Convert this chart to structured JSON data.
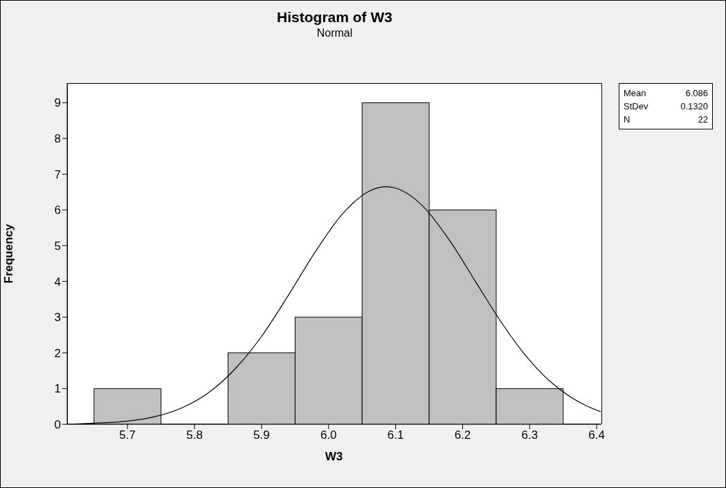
{
  "chart_data": {
    "type": "histogram",
    "title": "Histogram of W3",
    "subtitle": "Normal",
    "xlabel": "W3",
    "ylabel": "Frequency",
    "bins": [
      5.65,
      5.75,
      5.85,
      5.95,
      6.05,
      6.15,
      6.25,
      6.35
    ],
    "values": [
      1,
      0,
      2,
      3,
      9,
      6,
      1
    ],
    "color": "#c0c0c0",
    "series": [
      {
        "type": "line",
        "color": "#000000",
        "x": [
          5.62,
          5.66,
          5.7,
          5.74,
          5.78,
          5.82,
          5.86,
          5.9,
          5.94,
          5.98,
          6.02,
          6.06,
          6.086,
          6.1,
          6.14,
          6.18,
          6.22,
          6.26,
          6.3,
          6.34,
          6.38,
          6.406
        ],
        "values": [
          0.01,
          0.04,
          0.09,
          0.21,
          0.45,
          0.87,
          1.54,
          2.46,
          3.61,
          4.82,
          5.87,
          6.52,
          6.65,
          6.61,
          6.12,
          5.16,
          3.97,
          2.79,
          1.79,
          1.05,
          0.56,
          0.35
        ]
      }
    ],
    "xlim": [
      5.61,
      6.406
    ],
    "xticks": [
      5.7,
      5.8,
      5.9,
      {
        "value": 6,
        "label": "6.0"
      },
      6.1,
      6.2,
      6.3,
      6.4
    ],
    "ylim": [
      0,
      9.55
    ],
    "yticks": [
      0,
      1,
      2,
      3,
      4,
      5,
      6,
      7,
      8,
      9
    ],
    "annotations": [
      "Mean 6.086",
      "StDev 0.1320",
      "N 22"
    ]
  }
}
